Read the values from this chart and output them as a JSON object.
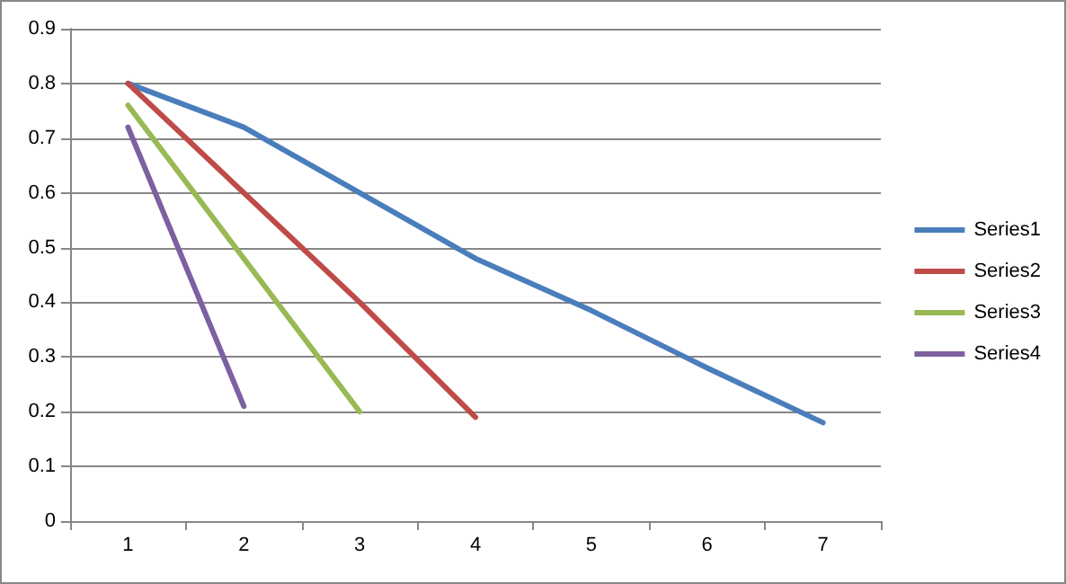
{
  "chart_data": {
    "type": "line",
    "categories": [
      "1",
      "2",
      "3",
      "4",
      "5",
      "6",
      "7"
    ],
    "series": [
      {
        "name": "Series1",
        "color": "#4a7ebb",
        "values": [
          0.8,
          0.72,
          0.6,
          0.48,
          0.385,
          0.28,
          0.18
        ]
      },
      {
        "name": "Series2",
        "color": "#be4b48",
        "values": [
          0.8,
          0.6,
          0.4,
          0.19,
          null,
          null,
          null
        ]
      },
      {
        "name": "Series3",
        "color": "#98b954",
        "values": [
          0.76,
          0.48,
          0.2,
          null,
          null,
          null,
          null
        ]
      },
      {
        "name": "Series4",
        "color": "#7d60a0",
        "values": [
          0.72,
          0.21,
          null,
          null,
          null,
          null,
          null
        ]
      }
    ],
    "ylim": [
      0,
      0.9
    ],
    "yticks": [
      0,
      0.1,
      0.2,
      0.3,
      0.4,
      0.5,
      0.6,
      0.7,
      0.8,
      0.9
    ],
    "grid": "y",
    "legend": "right",
    "marker": "none",
    "line_style": "solid"
  }
}
